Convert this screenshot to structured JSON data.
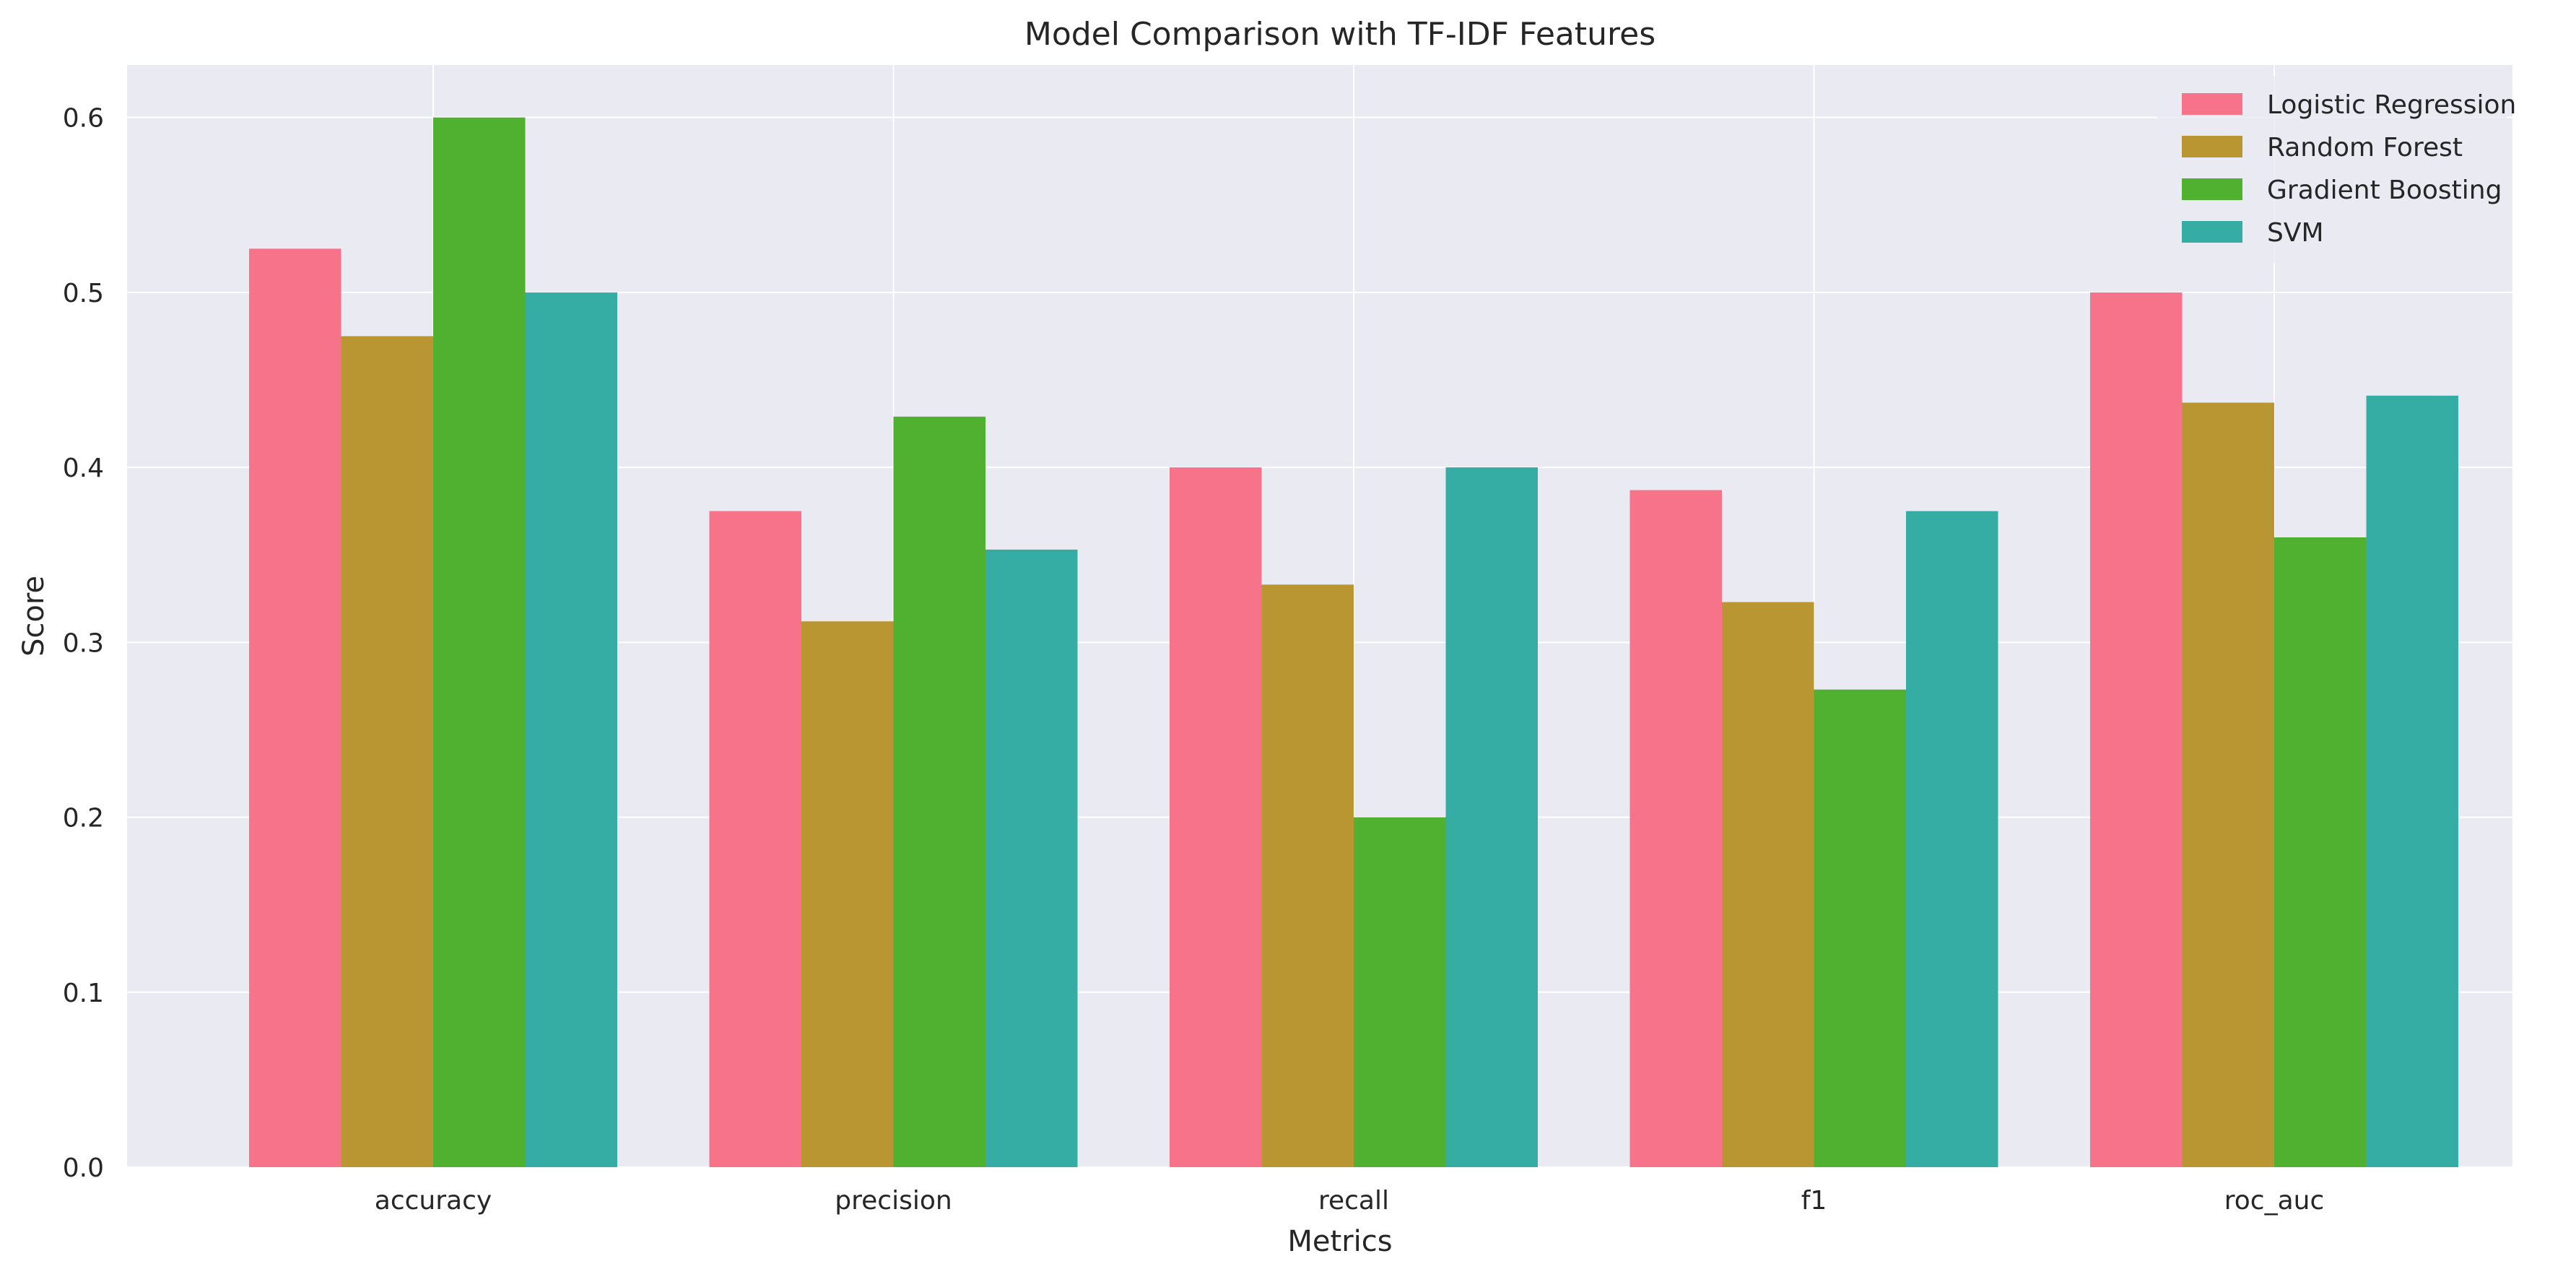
{
  "chart_data": {
    "type": "bar",
    "title": "Model Comparison with TF-IDF Features",
    "xlabel": "Metrics",
    "ylabel": "Score",
    "categories": [
      "accuracy",
      "precision",
      "recall",
      "f1",
      "roc_auc"
    ],
    "ylim": [
      0,
      0.63
    ],
    "yticks": [
      0.0,
      0.1,
      0.2,
      0.3,
      0.4,
      0.5,
      0.6
    ],
    "ytick_labels": [
      "0.0",
      "0.1",
      "0.2",
      "0.3",
      "0.4",
      "0.5",
      "0.6"
    ],
    "grid": true,
    "legend_position": "top-right",
    "series": [
      {
        "name": "Logistic Regression",
        "color": "#f7738a",
        "values": [
          0.525,
          0.375,
          0.4,
          0.387,
          0.5
        ]
      },
      {
        "name": "Random Forest",
        "color": "#b99631",
        "values": [
          0.475,
          0.312,
          0.333,
          0.323,
          0.437
        ]
      },
      {
        "name": "Gradient Boosting",
        "color": "#50b030",
        "values": [
          0.6,
          0.429,
          0.2,
          0.273,
          0.36
        ]
      },
      {
        "name": "SVM",
        "color": "#36ada4",
        "values": [
          0.5,
          0.353,
          0.4,
          0.375,
          0.441
        ]
      }
    ],
    "plot_background": "#eaeaf2",
    "grid_color": "#ffffff"
  }
}
